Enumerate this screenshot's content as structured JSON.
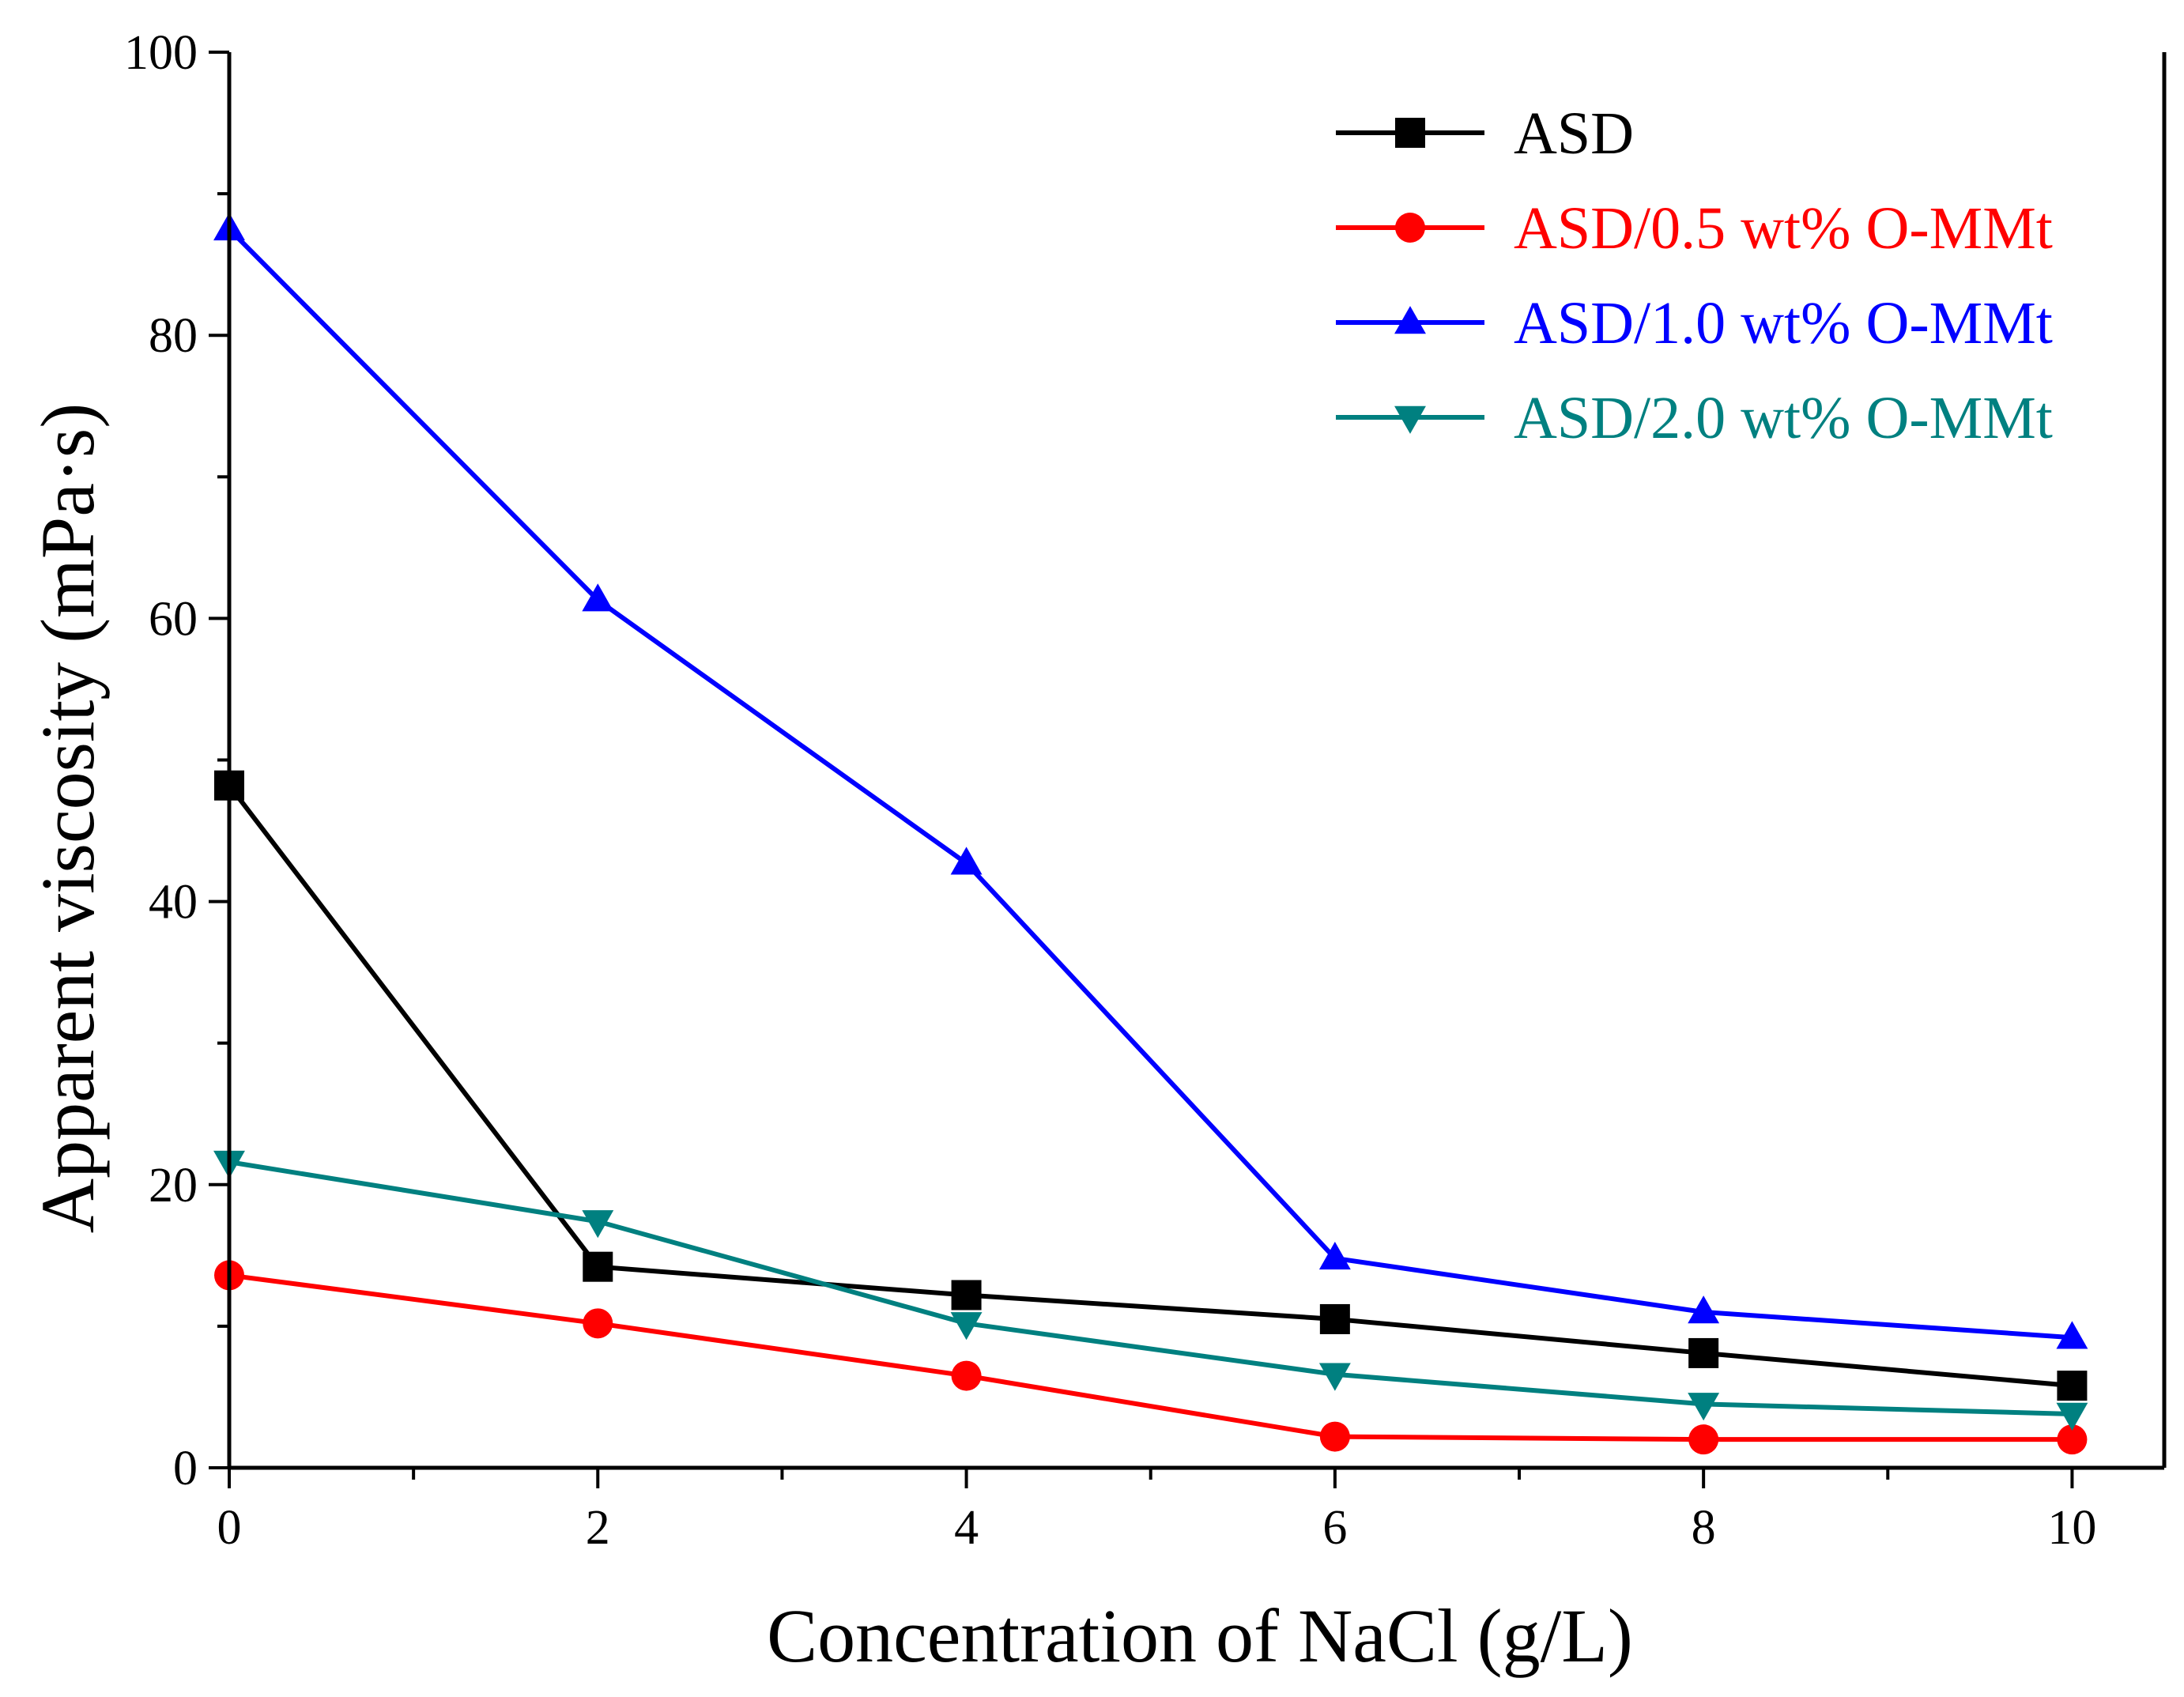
{
  "chart_data": {
    "type": "line",
    "title": "",
    "xlabel": "Concentration of NaCl (g/L)",
    "ylabel": "Apparent viscosity (mPa·s)",
    "xlim": [
      0,
      10.5
    ],
    "ylim": [
      0,
      100
    ],
    "xticks": [
      0,
      2,
      4,
      6,
      8,
      10
    ],
    "xtick_labels": [
      "0",
      "2",
      "4",
      "6",
      "8",
      "10"
    ],
    "yticks": [
      0,
      20,
      40,
      60,
      80,
      100
    ],
    "ytick_labels": [
      "0",
      "20",
      "40",
      "60",
      "80",
      "100"
    ],
    "grid": false,
    "legend_position": "top-right",
    "x": [
      0,
      2,
      4,
      6,
      8,
      10
    ],
    "series": [
      {
        "name": "ASD",
        "color": "#000000",
        "marker": "square",
        "values": [
          48.2,
          14.2,
          12.2,
          10.5,
          8.1,
          5.8
        ]
      },
      {
        "name": "ASD/0.5 wt% O-MMt",
        "color": "#ff0000",
        "marker": "circle",
        "values": [
          13.6,
          10.2,
          6.5,
          2.2,
          2.0,
          2.0
        ]
      },
      {
        "name": "ASD/1.0 wt% O-MMt",
        "color": "#0000ff",
        "marker": "triangle-up",
        "values": [
          87.5,
          61.3,
          42.7,
          14.8,
          11.0,
          9.2
        ]
      },
      {
        "name": "ASD/2.0 wt% O-MMt",
        "color": "#008080",
        "marker": "triangle-down",
        "values": [
          21.6,
          17.4,
          10.2,
          6.6,
          4.5,
          3.8
        ]
      }
    ]
  }
}
